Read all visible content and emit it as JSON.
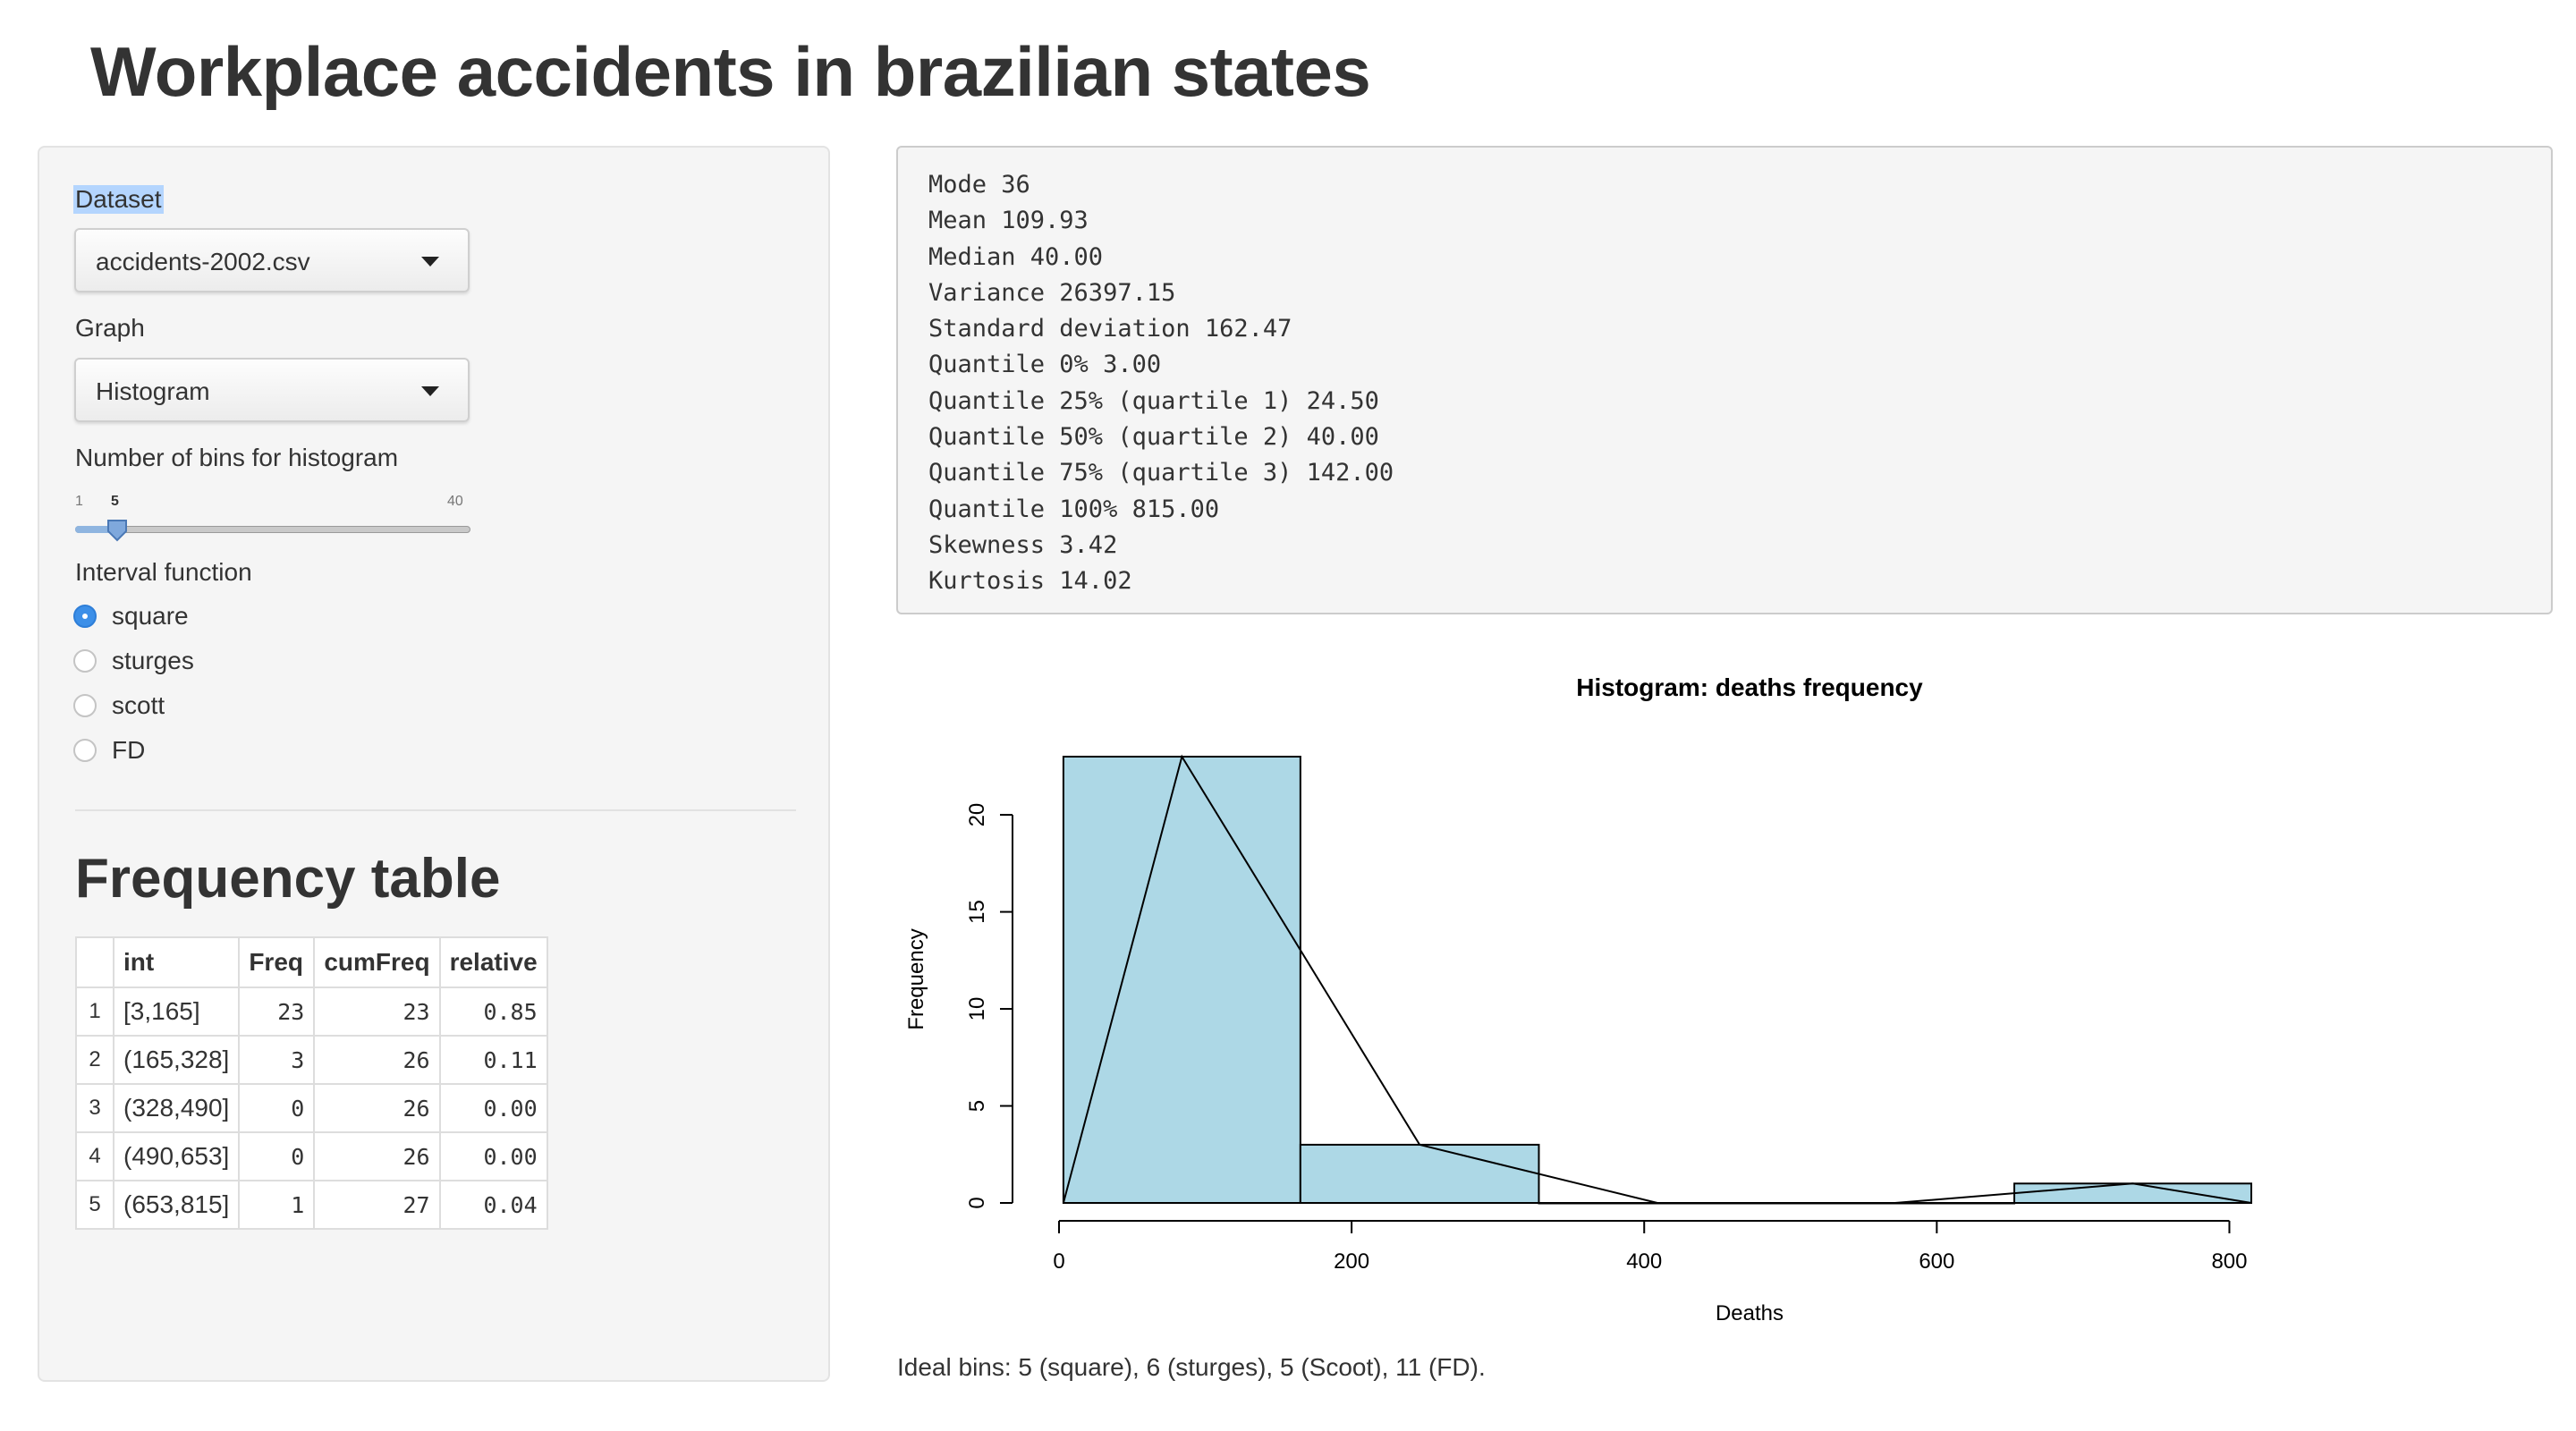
{
  "page": {
    "title": "Workplace accidents in brazilian states"
  },
  "sidebar": {
    "dataset_label": "Dataset",
    "dataset_value": "accidents-2002.csv",
    "graph_label": "Graph",
    "graph_value": "Histogram",
    "bins_label": "Number of bins for histogram",
    "bins_slider": {
      "min": "1",
      "max": "40",
      "value": "5"
    },
    "interval_label": "Interval function",
    "interval_options": [
      {
        "label": "square",
        "checked": true
      },
      {
        "label": "sturges",
        "checked": false
      },
      {
        "label": "scott",
        "checked": false
      },
      {
        "label": "FD",
        "checked": false
      }
    ],
    "freq_title": "Frequency table",
    "freq_table": {
      "headers": [
        "",
        "int",
        "Freq",
        "cumFreq",
        "relative"
      ],
      "rows": [
        [
          "1",
          "[3,165]",
          "23",
          "23",
          "0.85"
        ],
        [
          "2",
          "(165,328]",
          "3",
          "26",
          "0.11"
        ],
        [
          "3",
          "(328,490]",
          "0",
          "26",
          "0.00"
        ],
        [
          "4",
          "(490,653]",
          "0",
          "26",
          "0.00"
        ],
        [
          "5",
          "(653,815]",
          "1",
          "27",
          "0.04"
        ]
      ]
    }
  },
  "stats": [
    "Mode 36",
    "Mean 109.93",
    "Median 40.00",
    "Variance 26397.15",
    "Standard deviation 162.47",
    "Quantile 0% 3.00",
    "Quantile 25% (quartile 1) 24.50",
    "Quantile 50% (quartile 2) 40.00",
    "Quantile 75% (quartile 3) 142.00",
    "Quantile 100% 815.00",
    "Skewness 3.42",
    "Kurtosis 14.02"
  ],
  "chart_data": {
    "type": "bar",
    "title": "Histogram: deaths frequency",
    "xlabel": "Deaths",
    "ylabel": "Frequency",
    "bins": [
      [
        3,
        165
      ],
      [
        165,
        328
      ],
      [
        328,
        490
      ],
      [
        490,
        653
      ],
      [
        653,
        815
      ]
    ],
    "values": [
      23,
      3,
      0,
      0,
      1
    ],
    "polygon": {
      "x": [
        3,
        84,
        246.5,
        409,
        571.5,
        734,
        815
      ],
      "y": [
        0,
        23,
        3,
        0,
        0,
        1,
        0
      ]
    },
    "xlim": [
      0,
      815
    ],
    "ylim": [
      0,
      23
    ],
    "xticks": [
      0,
      200,
      400,
      600,
      800
    ],
    "yticks": [
      0,
      5,
      10,
      15,
      20
    ],
    "bar_color": "#add8e6",
    "grid": false
  },
  "note": "Ideal bins: 5 (square), 6 (sturges), 5 (Scoot), 11 (FD)."
}
